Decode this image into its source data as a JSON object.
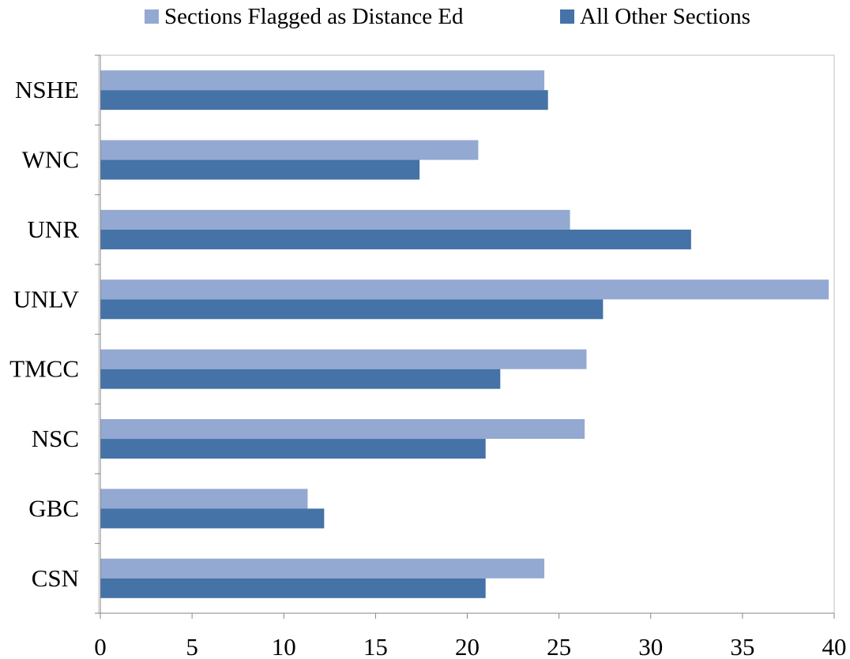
{
  "chart_data": {
    "type": "bar",
    "orientation": "horizontal",
    "categories": [
      "NSHE",
      "WNC",
      "UNR",
      "UNLV",
      "TMCC",
      "NSC",
      "GBC",
      "CSN"
    ],
    "series": [
      {
        "name": "Sections Flagged as Distance Ed",
        "color": "#93A9D1",
        "values": [
          24.2,
          20.6,
          25.6,
          39.7,
          26.5,
          26.4,
          11.3,
          24.2
        ]
      },
      {
        "name": "All Other Sections",
        "color": "#4572A7",
        "values": [
          24.4,
          17.4,
          32.2,
          27.4,
          21.8,
          21.0,
          12.2,
          21.0
        ]
      }
    ],
    "xlim": [
      0,
      40
    ],
    "x_ticks": [
      "0",
      "5",
      "10",
      "15",
      "20",
      "25",
      "30",
      "35",
      "40"
    ],
    "legend_position": "top",
    "grid": false
  }
}
